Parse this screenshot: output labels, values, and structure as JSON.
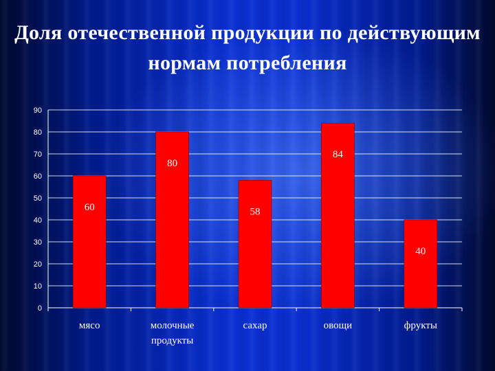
{
  "title": "Доля отечественной продукции по действующим нормам потребления",
  "chart_data": {
    "type": "bar",
    "categories": [
      [
        "мясо"
      ],
      [
        "молочные",
        "продукты"
      ],
      [
        "сахар"
      ],
      [
        "овощи"
      ],
      [
        "фрукты"
      ]
    ],
    "values": [
      60,
      80,
      58,
      84,
      40
    ],
    "ylim": [
      0,
      90
    ],
    "yticks": [
      0,
      10,
      20,
      30,
      40,
      50,
      60,
      70,
      80,
      90
    ],
    "grid": true,
    "colors": {
      "bar": "#ff0000",
      "bar_edge": "#800000",
      "grid": "#ffffff",
      "text": "#ffffff"
    }
  }
}
